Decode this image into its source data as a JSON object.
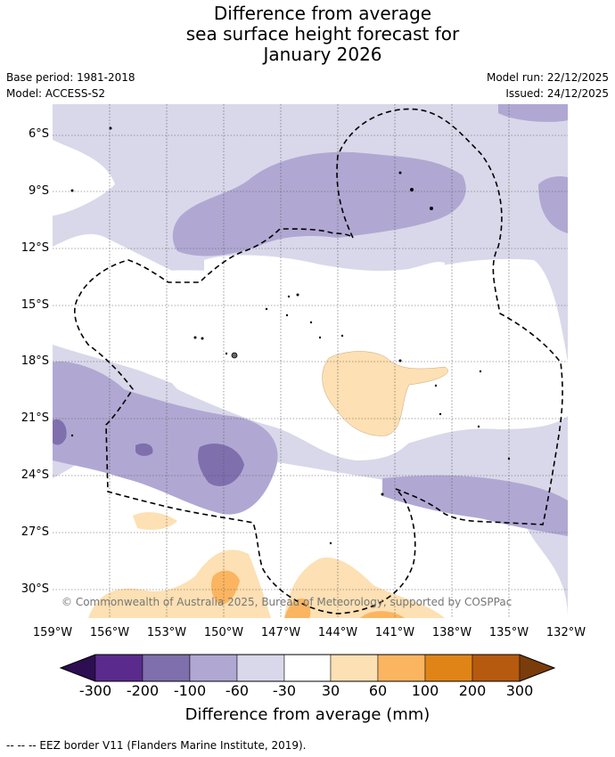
{
  "header": {
    "title_line1": "Difference from average",
    "title_line2": "sea surface height forecast for",
    "title_line3": "January 2026",
    "base_period": "Base period: 1981-2018",
    "model": "Model: ACCESS-S2",
    "model_run": "Model run: 22/12/2025",
    "issued": "Issued: 24/12/2025"
  },
  "map": {
    "lat_labels": [
      "6°S",
      "9°S",
      "12°S",
      "15°S",
      "18°S",
      "21°S",
      "24°S",
      "27°S",
      "30°S"
    ],
    "lon_labels": [
      "159°W",
      "156°W",
      "153°W",
      "150°W",
      "147°W",
      "144°W",
      "141°W",
      "138°W",
      "135°W",
      "132°W"
    ],
    "copyright": "© Commonwealth of Australia 2025, Bureau of Meteorology, supported by COSPPac"
  },
  "legend": {
    "title": "Difference from average (mm)",
    "labels": [
      "-300",
      "-200",
      "-100",
      "-60",
      "-30",
      "30",
      "60",
      "100",
      "200",
      "300"
    ],
    "colors": {
      "below_min": "#2d0e52",
      "c1": "#5a2a8c",
      "c2": "#7f6fad",
      "c3": "#b0a8d2",
      "c4": "#d8d8ea",
      "c5": "#ffffff",
      "c6": "#fde0b3",
      "c7": "#fbb560",
      "c8": "#e08418",
      "c9": "#b55a0e",
      "above_max": "#7a3c0b"
    }
  },
  "footer": {
    "eez_note": "--  --  -- EEZ border V11 (Flanders Marine Institute, 2019)."
  }
}
